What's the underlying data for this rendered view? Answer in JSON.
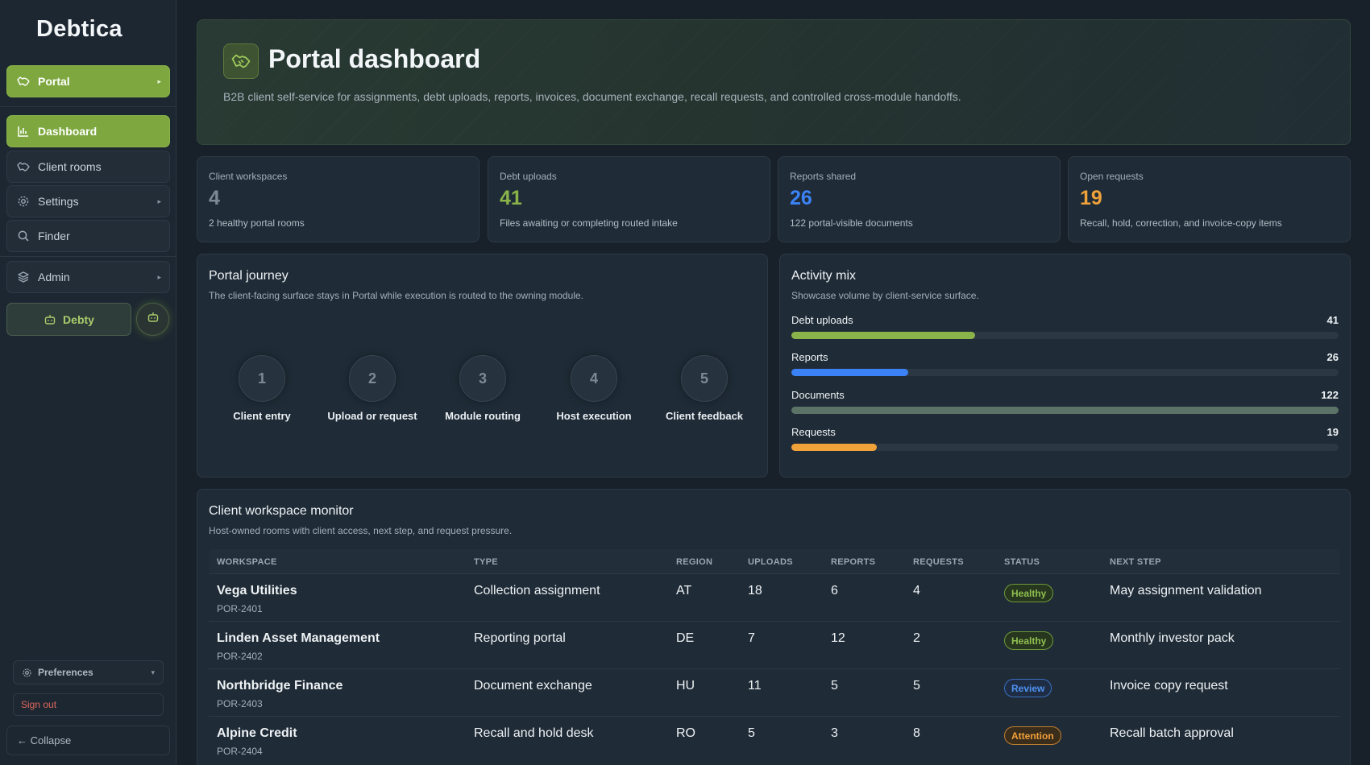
{
  "app": {
    "logo": "Debtica"
  },
  "sidebar": {
    "module": {
      "label": "Portal",
      "icon": "handshake-icon"
    },
    "items": [
      {
        "label": "Dashboard",
        "icon": "bar-chart-icon",
        "active": true
      },
      {
        "label": "Client rooms",
        "icon": "handshake-icon"
      },
      {
        "label": "Settings",
        "icon": "gear-icon"
      },
      {
        "label": "Finder",
        "icon": "search-icon"
      },
      {
        "label": "Admin",
        "icon": "layers-icon"
      }
    ],
    "assistant": {
      "label": "Debty",
      "icon": "robot-icon"
    },
    "preferences": "Preferences",
    "sign_out": "Sign out",
    "collapse": "← Collapse"
  },
  "hero": {
    "title": "Portal dashboard",
    "subtitle": "B2B client self-service for assignments, debt uploads, reports, invoices, document exchange, recall requests, and controlled cross-module handoffs."
  },
  "stats": [
    {
      "label": "Client workspaces",
      "value": "4",
      "sub": "2 healthy portal rooms",
      "color": "#7d8a96"
    },
    {
      "label": "Debt uploads",
      "value": "41",
      "sub": "Files awaiting or completing routed intake",
      "color": "#8ab44a"
    },
    {
      "label": "Reports shared",
      "value": "26",
      "sub": "122 portal-visible documents",
      "color": "#3b82f6"
    },
    {
      "label": "Open requests",
      "value": "19",
      "sub": "Recall, hold, correction, and invoice-copy items",
      "color": "#f0a23a"
    }
  ],
  "journey": {
    "title": "Portal journey",
    "subtitle": "The client-facing surface stays in Portal while execution is routed to the owning module.",
    "steps": [
      {
        "num": "1",
        "label": "Client entry"
      },
      {
        "num": "2",
        "label": "Upload or request"
      },
      {
        "num": "3",
        "label": "Module routing"
      },
      {
        "num": "4",
        "label": "Host execution"
      },
      {
        "num": "5",
        "label": "Client feedback"
      }
    ]
  },
  "mix": {
    "title": "Activity mix",
    "subtitle": "Showcase volume by client-service surface.",
    "max": 122,
    "rows": [
      {
        "label": "Debt uploads",
        "value": 41,
        "color": "#8ab44a"
      },
      {
        "label": "Reports",
        "value": 26,
        "color": "#3b82f6"
      },
      {
        "label": "Documents",
        "value": 122,
        "color": "#5b7367"
      },
      {
        "label": "Requests",
        "value": 19,
        "color": "#f0a23a"
      }
    ]
  },
  "monitor": {
    "title": "Client workspace monitor",
    "subtitle": "Host-owned rooms with client access, next step, and request pressure.",
    "columns": [
      "WORKSPACE",
      "TYPE",
      "REGION",
      "UPLOADS",
      "REPORTS",
      "REQUESTS",
      "STATUS",
      "NEXT STEP"
    ],
    "rows": [
      {
        "name": "Vega Utilities",
        "code": "POR-2401",
        "type": "Collection assignment",
        "region": "AT",
        "uploads": "18",
        "reports": "6",
        "requests": "4",
        "status": "Healthy",
        "status_kind": "healthy",
        "next": "May assignment validation"
      },
      {
        "name": "Linden Asset Management",
        "code": "POR-2402",
        "type": "Reporting portal",
        "region": "DE",
        "uploads": "7",
        "reports": "12",
        "requests": "2",
        "status": "Healthy",
        "status_kind": "healthy",
        "next": "Monthly investor pack"
      },
      {
        "name": "Northbridge Finance",
        "code": "POR-2403",
        "type": "Document exchange",
        "region": "HU",
        "uploads": "11",
        "reports": "5",
        "requests": "5",
        "status": "Review",
        "status_kind": "review",
        "next": "Invoice copy request"
      },
      {
        "name": "Alpine Credit",
        "code": "POR-2404",
        "type": "Recall and hold desk",
        "region": "RO",
        "uploads": "5",
        "reports": "3",
        "requests": "8",
        "status": "Attention",
        "status_kind": "attention",
        "next": "Recall batch approval"
      }
    ]
  }
}
